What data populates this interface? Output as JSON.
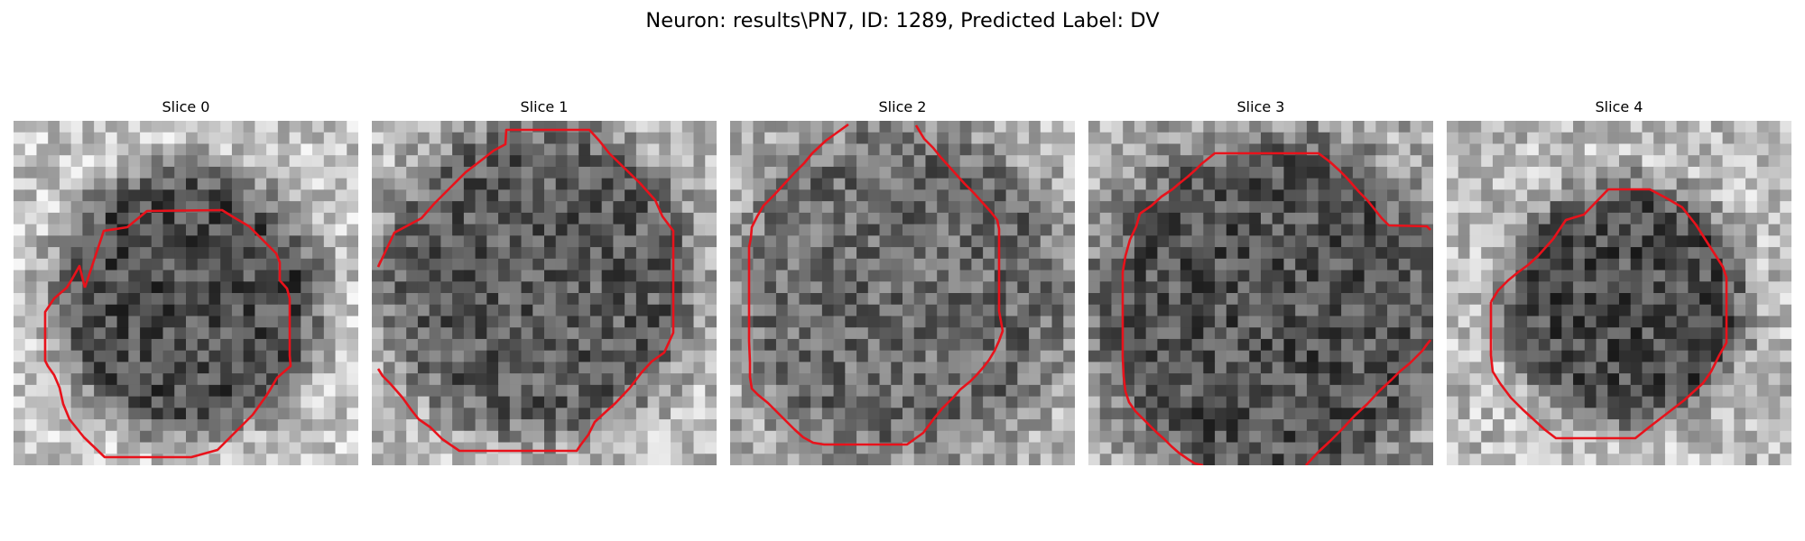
{
  "figure": {
    "title": "Neuron: results\\PN7, ID: 1289, Predicted Label: DV",
    "contour_color": "#e8121b",
    "colormap": "gray"
  },
  "panels": [
    {
      "title": "Slice 0",
      "image": "grayscale cell slice with red contour"
    },
    {
      "title": "Slice 1",
      "image": "grayscale cell slice with red contour"
    },
    {
      "title": "Slice 2",
      "image": "grayscale cell slice with red contour"
    },
    {
      "title": "Slice 3",
      "image": "grayscale cell slice with red contour"
    },
    {
      "title": "Slice 4",
      "image": "grayscale cell slice with red contour"
    }
  ]
}
